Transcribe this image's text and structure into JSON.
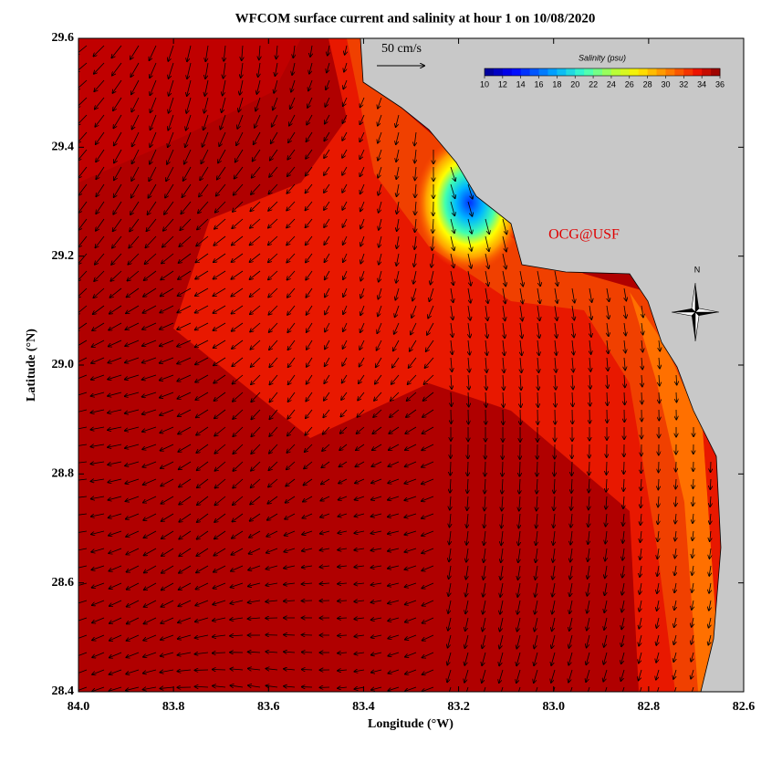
{
  "title": "WFCOM surface current and salinity at hour 1 on 10/08/2020",
  "map": {
    "xlabel": "Longitude (°W)",
    "ylabel": "Latitude (°N)",
    "xlim": [
      84,
      82.6
    ],
    "ylim": [
      28.4,
      29.6
    ],
    "xticks": [
      {
        "value": 84,
        "label": "84.0"
      },
      83.8,
      83.6,
      83.4,
      83.2,
      {
        "value": 83,
        "label": "83.0"
      },
      82.8,
      82.6
    ],
    "yticks": [
      28.4,
      28.6,
      28.8,
      {
        "value": 29,
        "label": "29.0"
      },
      29.2,
      29.4,
      29.6
    ],
    "scale_label": "50 cm/s",
    "watermark": "OCG@USF",
    "north": "N"
  },
  "colorbar": {
    "title": "Salinity (psu)",
    "lim": [
      10,
      36
    ],
    "ticks": [
      10,
      12,
      14,
      16,
      18,
      20,
      22,
      24,
      26,
      28,
      30,
      32,
      34,
      36
    ]
  }
}
